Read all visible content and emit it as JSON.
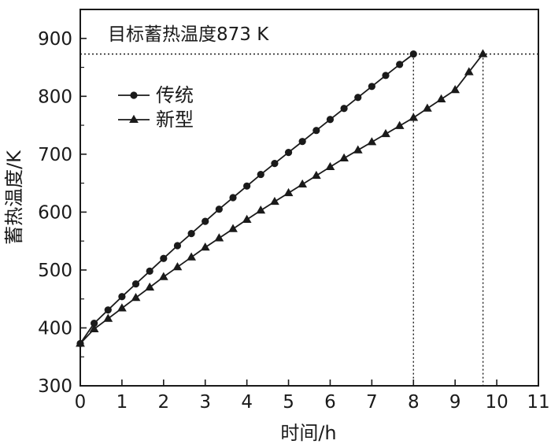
{
  "chart_data": {
    "type": "line",
    "title": "",
    "annotation": "目标蓄热温度873 K",
    "xlabel": "时间/h",
    "ylabel": "蓄热温度/K",
    "xlim": [
      0,
      11
    ],
    "ylim": [
      300,
      950
    ],
    "x_ticks": [
      "0",
      "1",
      "2",
      "3",
      "4",
      "5",
      "6",
      "7",
      "8",
      "9",
      "10",
      "11"
    ],
    "y_ticks": [
      "300",
      "400",
      "500",
      "600",
      "700",
      "800",
      "900"
    ],
    "grid": false,
    "legend_position": "upper-left",
    "target_temperature": 873,
    "target_times": [
      8.0,
      9.67
    ],
    "series": [
      {
        "name": "传统",
        "marker": "circle",
        "color": "#1a1a1a",
        "x": [
          0,
          0.333,
          0.667,
          1.0,
          1.333,
          1.667,
          2.0,
          2.333,
          2.667,
          3.0,
          3.333,
          3.667,
          4.0,
          4.333,
          4.667,
          5.0,
          5.333,
          5.667,
          6.0,
          6.333,
          6.667,
          7.0,
          7.333,
          7.667,
          8.0
        ],
        "values": [
          373,
          408,
          431,
          454,
          476,
          498,
          520,
          542,
          563,
          584,
          605,
          625,
          645,
          665,
          684,
          703,
          722,
          741,
          760,
          779,
          798,
          817,
          836,
          855,
          873
        ]
      },
      {
        "name": "新型",
        "marker": "triangle",
        "color": "#1a1a1a",
        "x": [
          0,
          0.333,
          0.667,
          1.0,
          1.333,
          1.667,
          2.0,
          2.333,
          2.667,
          3.0,
          3.333,
          3.667,
          4.0,
          4.333,
          4.667,
          5.0,
          5.333,
          5.667,
          6.0,
          6.333,
          6.667,
          7.0,
          7.333,
          7.667,
          8.0,
          8.333,
          8.667,
          9.0,
          9.333,
          9.667
        ],
        "values": [
          373,
          398,
          416,
          434,
          452,
          470,
          488,
          505,
          522,
          539,
          555,
          571,
          587,
          603,
          618,
          633,
          648,
          663,
          678,
          693,
          707,
          721,
          735,
          749,
          763,
          779,
          795,
          811,
          842,
          873
        ]
      }
    ]
  }
}
